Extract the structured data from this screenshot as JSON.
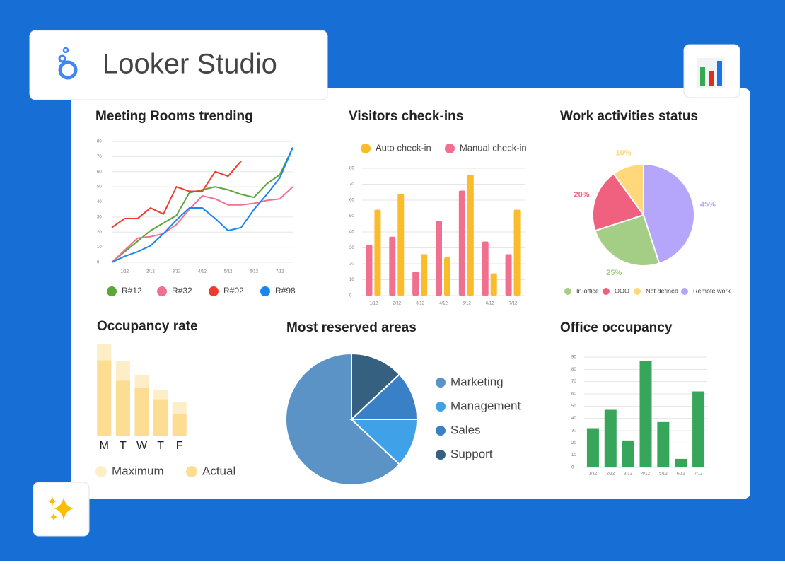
{
  "header": {
    "title": "Looker Studio"
  },
  "chart_data": [
    {
      "type": "line",
      "title": "Meeting Rooms trending",
      "categories": [
        null,
        "1/12",
        null,
        "2/12",
        null,
        "3/12",
        null,
        "4/12",
        null,
        "5/12",
        null,
        "6/12",
        null,
        "7/12",
        null
      ],
      "series": [
        {
          "name": "R#12",
          "color": "#5ba63a",
          "values": [
            0,
            7,
            14,
            21,
            26,
            31,
            46,
            48,
            50,
            48,
            45,
            43,
            52,
            58,
            76
          ]
        },
        {
          "name": "R#32",
          "color": "#f2708f",
          "values": [
            0,
            8,
            16,
            17,
            19,
            25,
            35,
            44,
            42,
            38,
            38,
            39,
            41,
            42,
            50
          ]
        },
        {
          "name": "R#02",
          "color": "#ef3b2e",
          "values": [
            23,
            29,
            29,
            36,
            32,
            50,
            47,
            47,
            60,
            57,
            67,
            null,
            null,
            null,
            null
          ]
        },
        {
          "name": "R#98",
          "color": "#1a86ee",
          "values": [
            0,
            4,
            7,
            11,
            19,
            28,
            36,
            36,
            29,
            21,
            23,
            35,
            45,
            56,
            76
          ]
        }
      ],
      "ylim": [
        0,
        80
      ],
      "yticks": [
        0,
        10,
        20,
        30,
        40,
        50,
        60,
        70,
        80
      ],
      "grid": true
    },
    {
      "type": "bar",
      "title": "Visitors check-ins",
      "categories": [
        "1/12",
        "2/12",
        "3/12",
        "4/12",
        "5/12",
        "6/12",
        "7/12"
      ],
      "series": [
        {
          "name": "Auto check-in",
          "color": "#fbbc2c",
          "values": [
            54,
            64,
            26,
            24,
            76,
            14,
            54
          ]
        },
        {
          "name": "Manual check-in",
          "color": "#f2708f",
          "values": [
            32,
            37,
            15,
            47,
            66,
            34,
            26
          ]
        }
      ],
      "ylim": [
        0,
        80
      ],
      "yticks": [
        0,
        10,
        20,
        30,
        40,
        50,
        60,
        70,
        80
      ],
      "grid": true
    },
    {
      "type": "pie",
      "title": "Work activities status",
      "categories": [
        "In-office",
        "OOO",
        "Not defined",
        "Remote work"
      ],
      "values": [
        25,
        20,
        10,
        45
      ],
      "value_labels": [
        "25%",
        "20%",
        "10%",
        "45%"
      ],
      "colors": [
        "#a4cd85",
        "#f0617f",
        "#fed87b",
        "#b6a6fb"
      ]
    },
    {
      "type": "bar",
      "title": "Occupancy rate",
      "categories": [
        "M",
        "T",
        "W",
        "T",
        "F"
      ],
      "series": [
        {
          "name": "Maximum",
          "color": "#fdeec8",
          "values": [
            100,
            81,
            66,
            50,
            37
          ]
        },
        {
          "name": "Actual",
          "color": "#fcdd91",
          "values": [
            82,
            60,
            52,
            40,
            24
          ]
        }
      ]
    },
    {
      "type": "pie",
      "title": "Most reserved areas",
      "categories": [
        "Marketing",
        "Management",
        "Sales",
        "Support"
      ],
      "values": [
        63,
        12,
        12,
        13
      ],
      "colors": [
        "#5b93c7",
        "#3fa2e8",
        "#3a80c6",
        "#35607f"
      ]
    },
    {
      "type": "bar",
      "title": "Office occupancy",
      "categories": [
        "1/12",
        "2/12",
        "3/12",
        "4/12",
        "5/12",
        "6/12",
        "7/12"
      ],
      "values": [
        32,
        47,
        22,
        87,
        37,
        7,
        62
      ],
      "color": "#38a65a",
      "ylim": [
        0,
        90
      ],
      "yticks": [
        0,
        10,
        20,
        30,
        40,
        50,
        60,
        70,
        80,
        90
      ],
      "grid": true
    }
  ]
}
